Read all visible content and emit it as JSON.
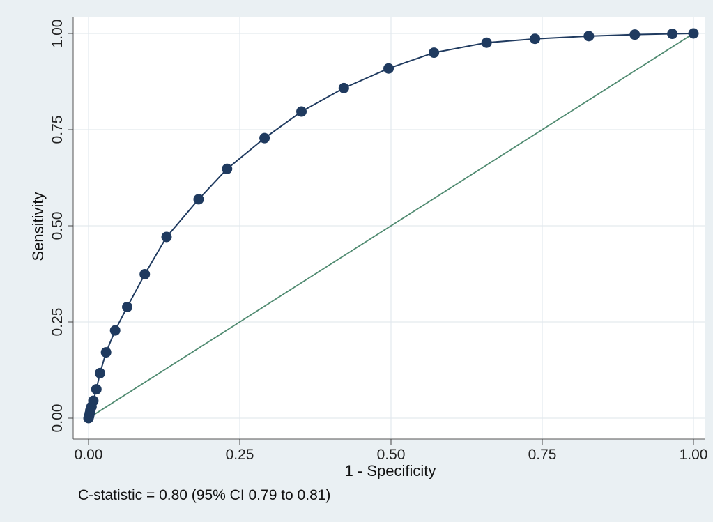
{
  "chart_data": {
    "type": "line",
    "xlabel": "1 - Specificity",
    "ylabel": "Sensitivity",
    "xlim": [
      0,
      1
    ],
    "ylim": [
      0,
      1
    ],
    "xticks": [
      "0.00",
      "0.25",
      "0.50",
      "0.75",
      "1.00"
    ],
    "yticks": [
      "0.00",
      "0.25",
      "0.50",
      "0.75",
      "1.00"
    ],
    "grid": true,
    "note": "C-statistic = 0.80 (95% CI 0.79 to 0.81)",
    "series": [
      {
        "color": "#1f3a5f",
        "markers": true,
        "x": [
          0.0,
          0.001,
          0.002,
          0.003,
          0.005,
          0.008,
          0.013,
          0.019,
          0.029,
          0.044,
          0.064,
          0.093,
          0.129,
          0.182,
          0.229,
          0.291,
          0.352,
          0.422,
          0.496,
          0.571,
          0.658,
          0.738,
          0.827,
          0.903,
          0.965,
          1.0
        ],
        "y": [
          0.0,
          0.005,
          0.012,
          0.02,
          0.03,
          0.045,
          0.075,
          0.117,
          0.171,
          0.228,
          0.289,
          0.374,
          0.471,
          0.569,
          0.648,
          0.728,
          0.797,
          0.858,
          0.909,
          0.95,
          0.976,
          0.986,
          0.993,
          0.997,
          0.999,
          1.0
        ]
      },
      {
        "color": "#4f8a70",
        "markers": false,
        "x": [
          0,
          1
        ],
        "y": [
          0,
          1
        ]
      }
    ]
  }
}
